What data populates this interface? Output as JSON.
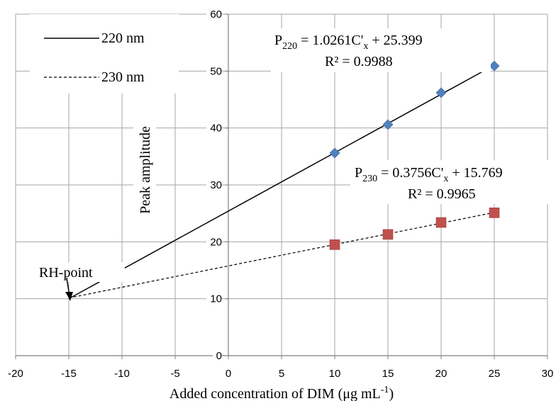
{
  "chart_data": {
    "type": "scatter",
    "xlabel": "Added concentration of DIM (μg mL",
    "xlabel_sup": "-1",
    "xlabel_close": ")",
    "ylabel": "Peak amplitude",
    "xlim": [
      -20,
      30
    ],
    "ylim": [
      0,
      60
    ],
    "xticks": [
      -20,
      -15,
      -10,
      -5,
      0,
      5,
      10,
      15,
      20,
      25,
      30
    ],
    "yticks": [
      0,
      10,
      20,
      30,
      40,
      50,
      60
    ],
    "grid": true,
    "legend_position": "top-left",
    "series": [
      {
        "name": "220 nm",
        "marker": "diamond",
        "color": "#4f81bd",
        "x": [
          10,
          15,
          20,
          25
        ],
        "y": [
          35.6,
          40.6,
          46.2,
          50.9
        ],
        "line_style": "solid",
        "fit": {
          "slope": 1.0261,
          "intercept": 25.399,
          "x_range": [
            -15,
            25
          ]
        },
        "equation": {
          "prefix": "P",
          "sub": "220",
          "mid": " = 1.0261C'",
          "sub2": "x",
          "suffix": " + 25.399"
        },
        "r2": "R² = 0.9988"
      },
      {
        "name": "230 nm",
        "marker": "square",
        "color": "#c0504d",
        "x": [
          10,
          15,
          20,
          25
        ],
        "y": [
          19.5,
          21.3,
          23.4,
          25.1
        ],
        "line_style": "dashed",
        "fit": {
          "slope": 0.3756,
          "intercept": 15.769,
          "x_range": [
            -15,
            25
          ]
        },
        "equation": {
          "prefix": "P",
          "sub": "230",
          "mid": " = 0.3756C'",
          "sub2": "x",
          "suffix": " + 15.769"
        },
        "r2": "R² = 0.9965"
      }
    ],
    "annotations": [
      {
        "text": "RH-point",
        "x": -15,
        "y": 10
      }
    ]
  }
}
